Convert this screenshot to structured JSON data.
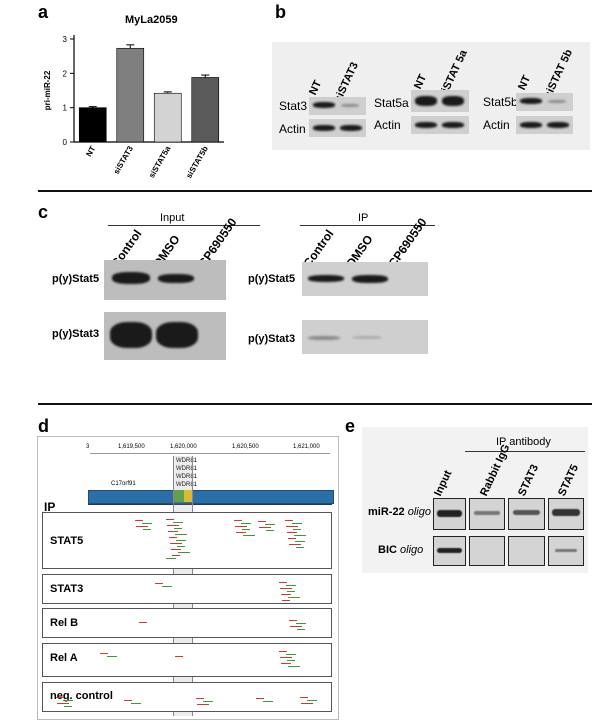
{
  "panel_a": {
    "label": "a",
    "chart_data": {
      "type": "bar",
      "title": "MyLa2059",
      "ylabel": "pri-miR-22",
      "categories": [
        "NT",
        "siSTAT3",
        "siSTAT5a",
        "siSTAT5b"
      ],
      "values": [
        1.0,
        2.73,
        1.42,
        1.88
      ],
      "errors": [
        0.03,
        0.1,
        0.04,
        0.07
      ],
      "ylim": [
        0,
        3
      ],
      "yticks": [
        "0",
        "1",
        "2",
        "3"
      ],
      "colors": [
        "#000000",
        "#7f7f7f",
        "#d3d3d3",
        "#5a5a5a"
      ]
    }
  },
  "panel_b": {
    "label": "b",
    "blots": [
      {
        "lanes": [
          "NT",
          "siSTAT3"
        ],
        "rows": [
          "Stat3",
          "Actin"
        ]
      },
      {
        "lanes": [
          "NT",
          "siSTAT 5a"
        ],
        "rows": [
          "Stat5a",
          "Actin"
        ]
      },
      {
        "lanes": [
          "NT",
          "siSTAT 5b"
        ],
        "rows": [
          "Stat5b",
          "Actin"
        ]
      }
    ]
  },
  "panel_c": {
    "label": "c",
    "groups": [
      {
        "title": "Input",
        "lanes": [
          "Control",
          "DMSO",
          "CP690550"
        ]
      },
      {
        "title": "IP",
        "lanes": [
          "Control",
          "DMSO",
          "CP690550"
        ]
      }
    ],
    "rows": [
      "p(y)Stat5",
      "p(y)Stat3"
    ]
  },
  "panel_d": {
    "label": "d",
    "axis_ticks": [
      "3",
      "1,619,500",
      "1,620,000",
      "1,620,500",
      "1,621,000"
    ],
    "genes": [
      "WDR81",
      "WDR81",
      "WDR81",
      "WDR81",
      "C17orf91"
    ],
    "section_label": "IP",
    "tracks": [
      "STAT5",
      "STAT3",
      "Rel B",
      "Rel A",
      "neg. control"
    ]
  },
  "panel_e": {
    "label": "e",
    "header": "IP antibody",
    "lanes": [
      "Input",
      "Rabbit IgG",
      "STAT3",
      "STAT5"
    ],
    "rows": [
      {
        "name": "miR-22",
        "suffix": "oligo"
      },
      {
        "name": "BIC",
        "suffix": "oligo"
      }
    ]
  }
}
